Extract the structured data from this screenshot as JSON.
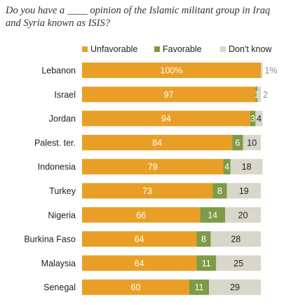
{
  "title": "Do you have a ____ opinion of the Islamic militant group in Iraq and Syria known as ISIS?",
  "colors": {
    "unfavorable": "#E99F27",
    "favorable": "#7E9B45",
    "dont_know": "#D9D6CA",
    "label_inside": "#ffffff",
    "label_outside": "#8a8a8a",
    "label_dark": "#222222"
  },
  "chart_data": {
    "type": "bar",
    "stacked": true,
    "orientation": "horizontal",
    "title": "Do you have a ____ opinion of the Islamic militant group in Iraq and Syria known as ISIS?",
    "categories": [
      "Lebanon",
      "Israel",
      "Jordan",
      "Palest. ter.",
      "Indonesia",
      "Turkey",
      "Nigeria",
      "Burkina Faso",
      "Malaysia",
      "Senegal"
    ],
    "series": [
      {
        "name": "Unfavorable",
        "values": [
          100,
          97,
          94,
          84,
          79,
          73,
          66,
          64,
          64,
          60
        ],
        "labels": [
          "100%",
          "97",
          "94",
          "84",
          "79",
          "73",
          "66",
          "64",
          "64",
          "60"
        ]
      },
      {
        "name": "Favorable",
        "values": [
          0,
          1,
          3,
          6,
          4,
          8,
          14,
          8,
          11,
          11
        ],
        "labels": [
          "",
          "1",
          "3",
          "6",
          "4",
          "8",
          "14",
          "8",
          "11",
          "11"
        ]
      },
      {
        "name": "Don't know",
        "values": [
          1,
          2,
          4,
          10,
          18,
          19,
          20,
          28,
          25,
          29
        ],
        "labels": [
          "1%",
          "2",
          "4",
          "10",
          "18",
          "19",
          "20",
          "28",
          "25",
          "29"
        ]
      }
    ],
    "xlim": [
      0,
      100
    ],
    "legend": "top",
    "grid": false
  }
}
